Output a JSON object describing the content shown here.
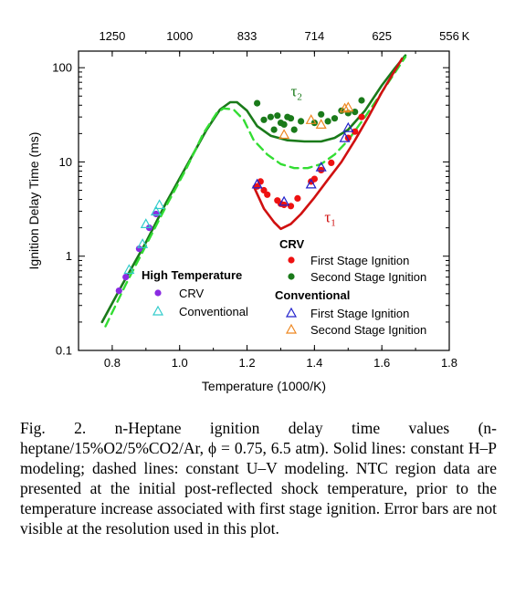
{
  "chart_data": {
    "type": "scatter",
    "xlabel": "Temperature (1000/K)",
    "ylabel": "Ignition Delay Time (ms)",
    "xlim": [
      0.7,
      1.8
    ],
    "ylim": [
      0.1,
      150
    ],
    "yscale": "log",
    "x_ticks": [
      0.8,
      1.0,
      1.2,
      1.4,
      1.6,
      1.8
    ],
    "x_tick_labels": [
      "0.8",
      "1.0",
      "1.2",
      "1.4",
      "1.6",
      "1.8"
    ],
    "y_ticks": [
      0.1,
      1,
      10,
      100
    ],
    "y_tick_labels": [
      "0.1",
      "1",
      "10",
      "100"
    ],
    "top_axis": {
      "ticks": [
        0.8,
        1.0,
        1.2,
        1.4,
        1.6,
        1.8
      ],
      "tick_labels": [
        "1250",
        "1000",
        "833",
        "714",
        "625",
        "556"
      ],
      "unit": "K"
    },
    "annotations": [
      {
        "text": "τ",
        "sub": "2",
        "x": 1.33,
        "y": 50,
        "color": "#1a7a1a"
      },
      {
        "text": "τ",
        "sub": "1",
        "x": 1.43,
        "y": 2.3,
        "color": "#d01010"
      }
    ],
    "legend": {
      "high_temperature": {
        "title": "High Temperature",
        "entries": [
          "CRV",
          "Conventional"
        ]
      },
      "crv": {
        "title": "CRV",
        "entries": [
          "First Stage Ignition",
          "Second Stage Ignition"
        ]
      },
      "conventional": {
        "title": "Conventional",
        "entries": [
          "First Stage Ignition",
          "Second Stage Ignition"
        ]
      }
    },
    "colors": {
      "hp_line": "#1a7a1a",
      "uv_line": "#33dd33",
      "tau1_line": "#d01010",
      "crv_high": "#8a2be2",
      "conv_high": "#33cccc",
      "crv_first": "#ee1111",
      "crv_second": "#1a7a1a",
      "conv_first": "#2222cc",
      "conv_second": "#ee8822"
    },
    "series": [
      {
        "id": "hp_total",
        "kind": "line",
        "style": "solid",
        "x": [
          0.77,
          0.83,
          0.9,
          0.96,
          1.02,
          1.08,
          1.12,
          1.15,
          1.17,
          1.2,
          1.23,
          1.27,
          1.32,
          1.37,
          1.42,
          1.46,
          1.5,
          1.55,
          1.6,
          1.64,
          1.67
        ],
        "y": [
          0.2,
          0.5,
          1.4,
          3.7,
          9,
          22,
          36,
          43,
          43,
          35,
          24,
          19,
          17,
          16.5,
          16.5,
          18,
          22,
          35,
          65,
          100,
          135
        ]
      },
      {
        "id": "uv_total",
        "kind": "line",
        "style": "dashed",
        "x": [
          0.78,
          0.84,
          0.9,
          0.96,
          1.02,
          1.07,
          1.11,
          1.13,
          1.16,
          1.19,
          1.22,
          1.26,
          1.3,
          1.34,
          1.38,
          1.42,
          1.46,
          1.5,
          1.55,
          1.6,
          1.64,
          1.67
        ],
        "y": [
          0.18,
          0.5,
          1.3,
          3.4,
          8.5,
          20,
          33,
          37,
          36,
          28,
          17,
          12,
          9.5,
          8.6,
          8.6,
          9.5,
          12,
          17,
          30,
          55,
          90,
          130
        ]
      },
      {
        "id": "hp_first_stage",
        "kind": "line",
        "style": "solid",
        "x": [
          1.22,
          1.25,
          1.28,
          1.3,
          1.33,
          1.36,
          1.4,
          1.44,
          1.48,
          1.52,
          1.56,
          1.6,
          1.64,
          1.66
        ],
        "y": [
          5.5,
          3.2,
          2.3,
          1.95,
          2.2,
          2.8,
          4.2,
          6.5,
          10,
          17,
          30,
          55,
          95,
          125
        ]
      },
      {
        "id": "crv_high",
        "kind": "scatter",
        "marker": "circle",
        "x": [
          0.82,
          0.84,
          0.88,
          0.91,
          0.93
        ],
        "y": [
          0.43,
          0.6,
          1.2,
          2.0,
          2.8
        ]
      },
      {
        "id": "conv_high",
        "kind": "scatter",
        "marker": "triangle",
        "x": [
          0.85,
          0.89,
          0.9,
          0.93,
          0.94
        ],
        "y": [
          0.72,
          1.35,
          2.2,
          3.0,
          3.5
        ]
      },
      {
        "id": "crv_first",
        "kind": "scatter",
        "marker": "circle",
        "x": [
          1.23,
          1.24,
          1.25,
          1.26,
          1.29,
          1.3,
          1.31,
          1.33,
          1.35,
          1.39,
          1.4,
          1.42,
          1.45,
          1.5,
          1.52,
          1.54
        ],
        "y": [
          5.5,
          6.2,
          5.0,
          4.5,
          3.9,
          3.6,
          3.5,
          3.4,
          4.1,
          6.2,
          6.6,
          8.2,
          9.8,
          18,
          21,
          30
        ]
      },
      {
        "id": "crv_second",
        "kind": "scatter",
        "marker": "circle",
        "x": [
          1.23,
          1.25,
          1.27,
          1.28,
          1.29,
          1.3,
          1.31,
          1.32,
          1.33,
          1.34,
          1.36,
          1.4,
          1.42,
          1.44,
          1.46,
          1.48,
          1.5,
          1.52,
          1.54
        ],
        "y": [
          42,
          28,
          30,
          22,
          31,
          26,
          25,
          30,
          29,
          22,
          27,
          26,
          32,
          27,
          29,
          35,
          33,
          34,
          45
        ]
      },
      {
        "id": "conv_first",
        "kind": "scatter",
        "marker": "triangle",
        "x": [
          1.23,
          1.31,
          1.39,
          1.42,
          1.49,
          1.5
        ],
        "y": [
          5.8,
          3.8,
          5.8,
          8.8,
          18,
          23
        ]
      },
      {
        "id": "conv_second",
        "kind": "scatter",
        "marker": "triangle",
        "x": [
          1.31,
          1.39,
          1.42,
          1.49,
          1.5
        ],
        "y": [
          19.5,
          28,
          25,
          37,
          38
        ]
      }
    ]
  },
  "caption": {
    "label": "Fig. 2.",
    "text": "n-Heptane ignition delay time values (n-heptane/15%O2/5%CO2/Ar, ϕ = 0.75, 6.5 atm). Solid lines: constant H–P modeling; dashed lines: constant U–V modeling. NTC region data are presented at the initial post-reflected shock temperature, prior to the temperature increase associated with first stage ignition. Error bars are not visible at the resolution used in this plot."
  }
}
